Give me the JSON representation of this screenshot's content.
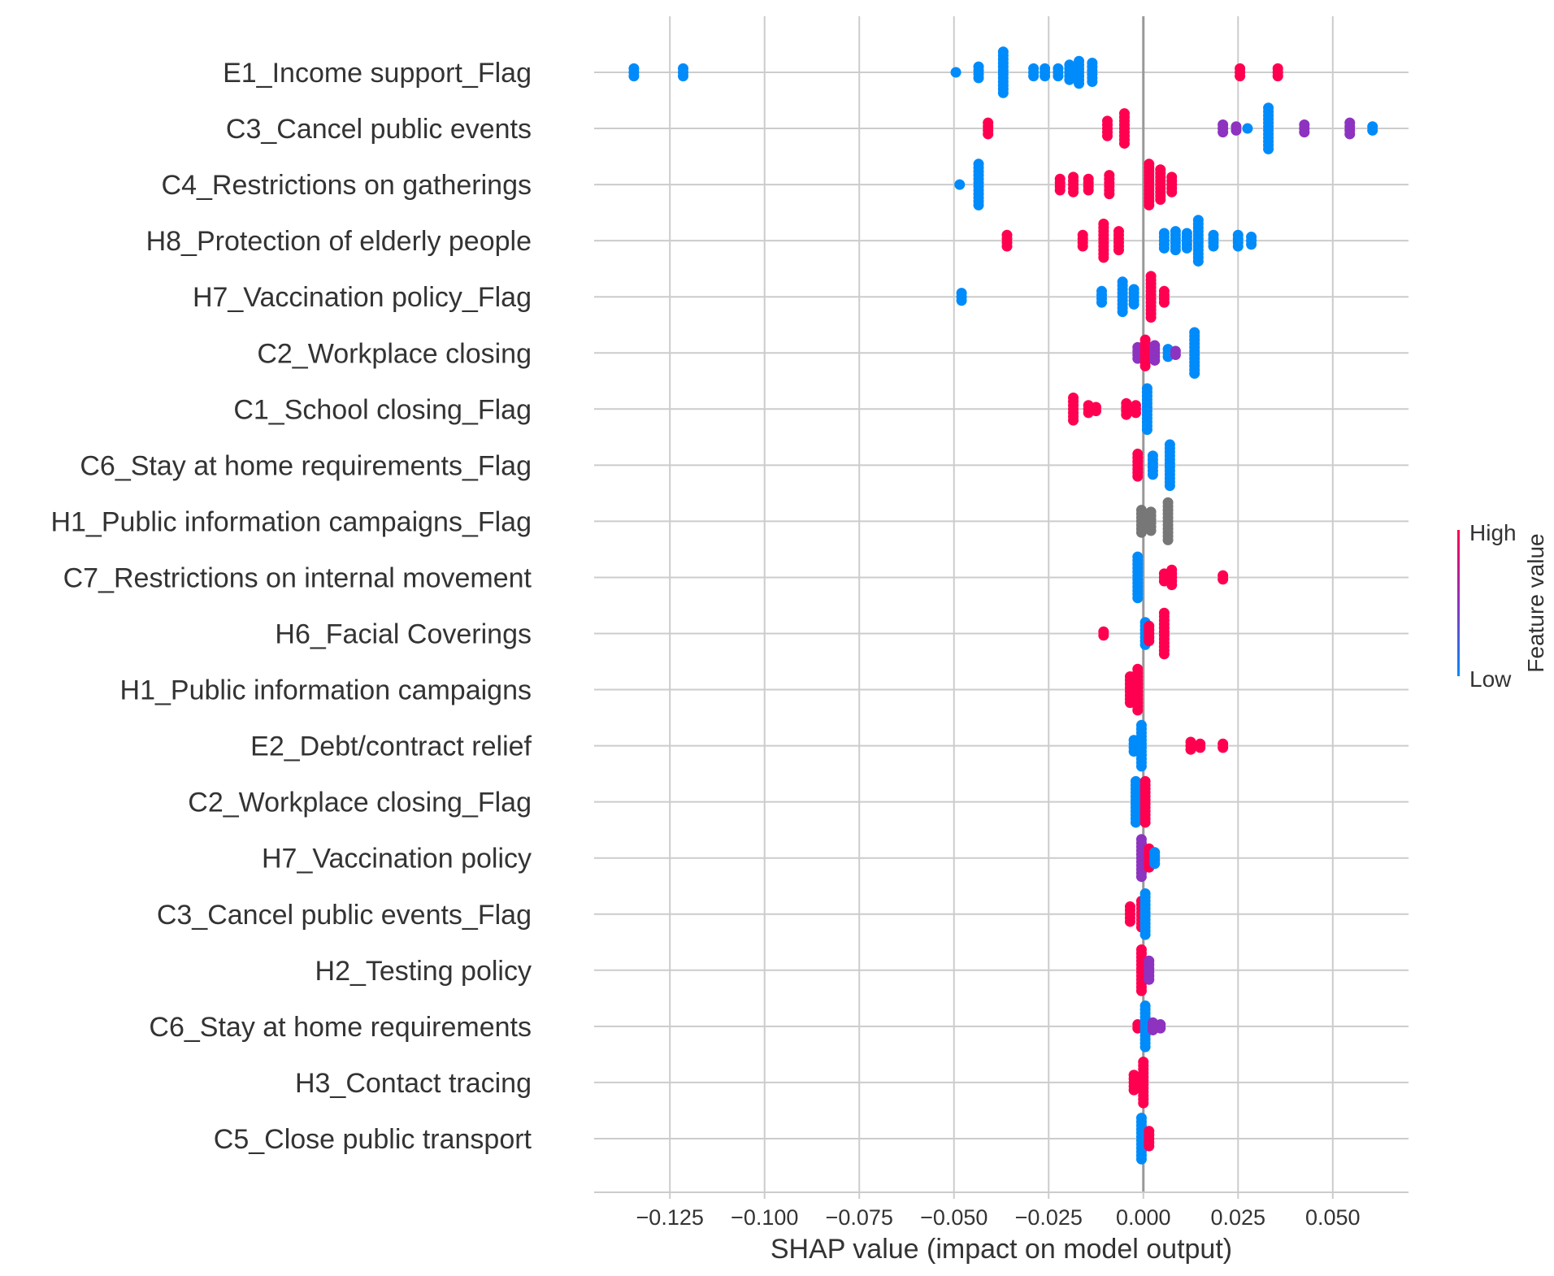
{
  "chart_data": {
    "type": "scatter",
    "subtype": "shap-beeswarm",
    "title": "",
    "xlabel": "SHAP value (impact on model output)",
    "ylabel": "",
    "xlim": [
      -0.145,
      0.07
    ],
    "x_ticks": [
      -0.125,
      -0.1,
      -0.075,
      -0.05,
      -0.025,
      0.0,
      0.025,
      0.05
    ],
    "x_tick_labels": [
      "−0.125",
      "−0.100",
      "−0.075",
      "−0.050",
      "−0.025",
      "0.000",
      "0.025",
      "0.050"
    ],
    "grid": true,
    "legend": {
      "type": "colorbar",
      "placement": "right",
      "label": "Feature value",
      "high_label": "High",
      "low_label": "Low",
      "high_color": "#ff0051",
      "mid_color": "#8d33c0",
      "low_color": "#008bfb"
    },
    "colors": {
      "high": "#ff0051",
      "mid": "#8d33c0",
      "low": "#008bfb",
      "missing": "#777777"
    },
    "features": [
      {
        "name": "E1_Income support_Flag",
        "groups": [
          {
            "x": -0.1345,
            "color": "low",
            "n": 3
          },
          {
            "x": -0.1215,
            "color": "low",
            "n": 3
          },
          {
            "x": -0.0495,
            "color": "low",
            "n": 1
          },
          {
            "x": -0.0435,
            "color": "low",
            "n": 4
          },
          {
            "x": -0.037,
            "color": "low",
            "n": 12
          },
          {
            "x": -0.029,
            "color": "low",
            "n": 3
          },
          {
            "x": -0.026,
            "color": "low",
            "n": 3
          },
          {
            "x": -0.0225,
            "color": "low",
            "n": 3
          },
          {
            "x": -0.0195,
            "color": "low",
            "n": 5
          },
          {
            "x": -0.017,
            "color": "low",
            "n": 7
          },
          {
            "x": -0.0135,
            "color": "low",
            "n": 6
          },
          {
            "x": 0.0255,
            "color": "high",
            "n": 3
          },
          {
            "x": 0.0355,
            "color": "high",
            "n": 3
          }
        ]
      },
      {
        "name": "C3_Cancel public events",
        "groups": [
          {
            "x": -0.041,
            "color": "high",
            "n": 4
          },
          {
            "x": -0.0095,
            "color": "high",
            "n": 5
          },
          {
            "x": -0.005,
            "color": "high",
            "n": 9
          },
          {
            "x": 0.021,
            "color": "mid",
            "n": 3
          },
          {
            "x": 0.0245,
            "color": "mid",
            "n": 2
          },
          {
            "x": 0.0275,
            "color": "low",
            "n": 1
          },
          {
            "x": 0.033,
            "color": "low",
            "n": 12
          },
          {
            "x": 0.0425,
            "color": "mid",
            "n": 3
          },
          {
            "x": 0.0545,
            "color": "mid",
            "n": 4
          },
          {
            "x": 0.0605,
            "color": "low",
            "n": 2
          }
        ]
      },
      {
        "name": "C4_Restrictions on gatherings",
        "groups": [
          {
            "x": -0.0485,
            "color": "low",
            "n": 1
          },
          {
            "x": -0.0435,
            "color": "low",
            "n": 12
          },
          {
            "x": -0.022,
            "color": "high",
            "n": 4
          },
          {
            "x": -0.0185,
            "color": "high",
            "n": 5
          },
          {
            "x": -0.0145,
            "color": "high",
            "n": 4
          },
          {
            "x": -0.009,
            "color": "high",
            "n": 6
          },
          {
            "x": 0.0015,
            "color": "high",
            "n": 12
          },
          {
            "x": 0.0045,
            "color": "high",
            "n": 9
          },
          {
            "x": 0.0075,
            "color": "high",
            "n": 5
          }
        ]
      },
      {
        "name": "H8_Protection of elderly people",
        "groups": [
          {
            "x": -0.036,
            "color": "high",
            "n": 4
          },
          {
            "x": -0.016,
            "color": "high",
            "n": 4
          },
          {
            "x": -0.0105,
            "color": "high",
            "n": 10
          },
          {
            "x": -0.0065,
            "color": "high",
            "n": 6
          },
          {
            "x": 0.0055,
            "color": "low",
            "n": 5
          },
          {
            "x": 0.0085,
            "color": "low",
            "n": 6
          },
          {
            "x": 0.0115,
            "color": "low",
            "n": 5
          },
          {
            "x": 0.0145,
            "color": "low",
            "n": 12
          },
          {
            "x": 0.0185,
            "color": "low",
            "n": 4
          },
          {
            "x": 0.025,
            "color": "low",
            "n": 4
          },
          {
            "x": 0.0285,
            "color": "low",
            "n": 3
          }
        ]
      },
      {
        "name": "H7_Vaccination policy_Flag",
        "groups": [
          {
            "x": -0.048,
            "color": "low",
            "n": 3
          },
          {
            "x": -0.011,
            "color": "low",
            "n": 4
          },
          {
            "x": -0.0055,
            "color": "low",
            "n": 9
          },
          {
            "x": -0.0025,
            "color": "low",
            "n": 5
          },
          {
            "x": 0.002,
            "color": "high",
            "n": 12
          },
          {
            "x": 0.0055,
            "color": "high",
            "n": 4
          }
        ]
      },
      {
        "name": "C2_Workplace closing",
        "groups": [
          {
            "x": -0.0015,
            "color": "mid",
            "n": 4
          },
          {
            "x": 0.0005,
            "color": "high",
            "n": 8
          },
          {
            "x": 0.003,
            "color": "mid",
            "n": 5
          },
          {
            "x": 0.0065,
            "color": "low",
            "n": 3
          },
          {
            "x": 0.0085,
            "color": "mid",
            "n": 2
          },
          {
            "x": 0.0135,
            "color": "low",
            "n": 12
          }
        ]
      },
      {
        "name": "C1_School closing_Flag",
        "groups": [
          {
            "x": -0.0185,
            "color": "high",
            "n": 7
          },
          {
            "x": -0.0145,
            "color": "high",
            "n": 3
          },
          {
            "x": -0.0125,
            "color": "high",
            "n": 2
          },
          {
            "x": -0.0045,
            "color": "high",
            "n": 4
          },
          {
            "x": -0.002,
            "color": "high",
            "n": 3
          },
          {
            "x": 0.001,
            "color": "low",
            "n": 12
          }
        ]
      },
      {
        "name": "C6_Stay at home requirements_Flag",
        "groups": [
          {
            "x": -0.0015,
            "color": "high",
            "n": 7
          },
          {
            "x": 0.0025,
            "color": "low",
            "n": 6
          },
          {
            "x": 0.007,
            "color": "low",
            "n": 12
          }
        ]
      },
      {
        "name": "H1_Public information campaigns_Flag",
        "groups": [
          {
            "x": -0.0005,
            "color": "missing",
            "n": 7
          },
          {
            "x": 0.002,
            "color": "missing",
            "n": 6
          },
          {
            "x": 0.0065,
            "color": "missing",
            "n": 11
          }
        ]
      },
      {
        "name": "C7_Restrictions on internal movement",
        "groups": [
          {
            "x": -0.0015,
            "color": "low",
            "n": 12
          },
          {
            "x": 0.0055,
            "color": "high",
            "n": 3
          },
          {
            "x": 0.0075,
            "color": "high",
            "n": 5
          },
          {
            "x": 0.021,
            "color": "high",
            "n": 2
          }
        ]
      },
      {
        "name": "H6_Facial Coverings",
        "groups": [
          {
            "x": -0.0105,
            "color": "high",
            "n": 2
          },
          {
            "x": 0.0005,
            "color": "low",
            "n": 7
          },
          {
            "x": 0.0015,
            "color": "high",
            "n": 5
          },
          {
            "x": 0.0055,
            "color": "high",
            "n": 12
          }
        ]
      },
      {
        "name": "H1_Public information campaigns",
        "groups": [
          {
            "x": -0.0035,
            "color": "high",
            "n": 8
          },
          {
            "x": -0.0015,
            "color": "high",
            "n": 12
          }
        ]
      },
      {
        "name": "E2_Debt/contract relief",
        "groups": [
          {
            "x": -0.0025,
            "color": "low",
            "n": 4
          },
          {
            "x": -0.0005,
            "color": "low",
            "n": 12
          },
          {
            "x": 0.0125,
            "color": "high",
            "n": 3
          },
          {
            "x": 0.015,
            "color": "high",
            "n": 2
          },
          {
            "x": 0.021,
            "color": "high",
            "n": 2
          }
        ]
      },
      {
        "name": "C2_Workplace closing_Flag",
        "groups": [
          {
            "x": -0.002,
            "color": "low",
            "n": 12
          },
          {
            "x": 0.0005,
            "color": "high",
            "n": 12
          }
        ]
      },
      {
        "name": "H7_Vaccination policy",
        "groups": [
          {
            "x": -0.0005,
            "color": "mid",
            "n": 11
          },
          {
            "x": 0.0015,
            "color": "high",
            "n": 6
          },
          {
            "x": 0.003,
            "color": "low",
            "n": 4
          }
        ]
      },
      {
        "name": "C3_Cancel public events_Flag",
        "groups": [
          {
            "x": -0.0035,
            "color": "high",
            "n": 5
          },
          {
            "x": -0.0005,
            "color": "high",
            "n": 8
          },
          {
            "x": 0.0005,
            "color": "low",
            "n": 12
          }
        ]
      },
      {
        "name": "H2_Testing policy",
        "groups": [
          {
            "x": -0.0005,
            "color": "high",
            "n": 12
          },
          {
            "x": 0.0015,
            "color": "mid",
            "n": 6
          }
        ]
      },
      {
        "name": "C6_Stay at home requirements",
        "groups": [
          {
            "x": -0.0015,
            "color": "high",
            "n": 2
          },
          {
            "x": 0.0005,
            "color": "low",
            "n": 12
          },
          {
            "x": 0.0025,
            "color": "mid",
            "n": 3
          },
          {
            "x": 0.0045,
            "color": "mid",
            "n": 2
          }
        ]
      },
      {
        "name": "H3_Contact tracing",
        "groups": [
          {
            "x": -0.0025,
            "color": "high",
            "n": 5
          },
          {
            "x": 0.0,
            "color": "high",
            "n": 12
          }
        ]
      },
      {
        "name": "C5_Close public transport",
        "groups": [
          {
            "x": -0.0005,
            "color": "low",
            "n": 12
          },
          {
            "x": 0.0015,
            "color": "high",
            "n": 5
          }
        ]
      }
    ]
  }
}
